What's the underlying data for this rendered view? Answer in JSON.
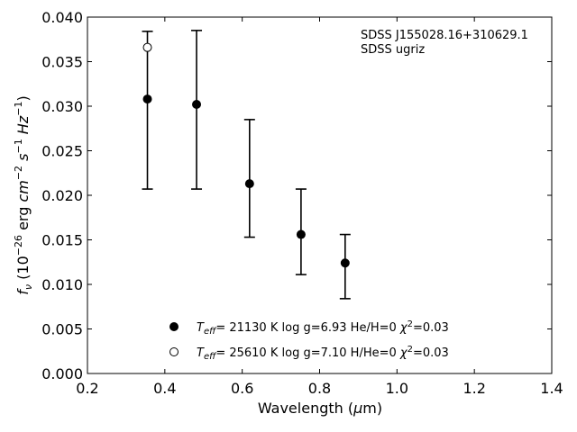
{
  "chart_data": {
    "type": "scatter",
    "title": "",
    "xlabel": "Wavelength (μm)",
    "ylabel": "fν (10⁻²⁶ erg cm⁻² s⁻¹ Hz⁻¹)",
    "xlim": [
      0.2,
      1.4
    ],
    "ylim": [
      0.0,
      0.04
    ],
    "x_ticks": [
      "0.2",
      "0.4",
      "0.6",
      "0.8",
      "1.0",
      "1.2",
      "1.4"
    ],
    "y_ticks": [
      "0.000",
      "0.005",
      "0.010",
      "0.015",
      "0.020",
      "0.025",
      "0.030",
      "0.035",
      "0.040"
    ],
    "grid": false,
    "annotation_lines": [
      "SDSS J155028.16+310629.1",
      "SDSS ugriz"
    ],
    "observed": {
      "x": [
        0.355,
        0.482,
        0.619,
        0.752,
        0.866
      ],
      "y_low": [
        0.0207,
        0.0207,
        0.0153,
        0.0111,
        0.0084
      ],
      "y_high": [
        0.0384,
        0.0385,
        0.0285,
        0.0207,
        0.0156
      ]
    },
    "series": [
      {
        "marker": "filled-circle",
        "legend": "T_eff= 21130 K  log g=6.93  He/H=0  χ²=0.03",
        "x": [
          0.355,
          0.482,
          0.619,
          0.752,
          0.866
        ],
        "y": [
          0.0308,
          0.0302,
          0.0213,
          0.0156,
          0.0124
        ]
      },
      {
        "marker": "open-circle",
        "legend": "T_eff= 25610 K  log g=7.10  H/He=0  χ²=0.03",
        "x": [
          0.355
        ],
        "y": [
          0.0366
        ]
      }
    ],
    "legend_placement": "lower-center"
  }
}
